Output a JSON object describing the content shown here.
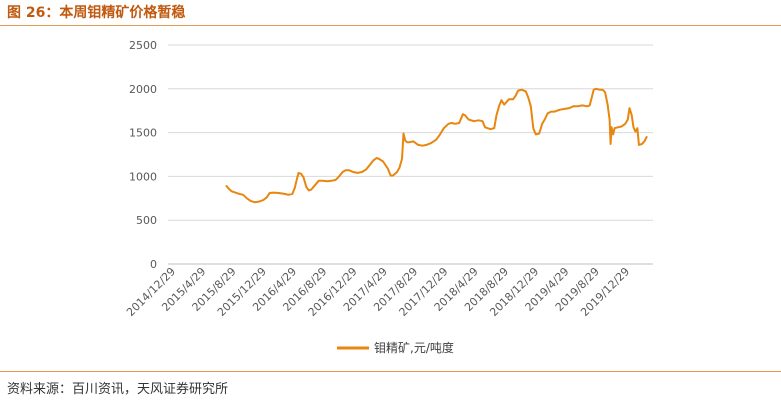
{
  "figure_title": "图 26：本周钼精矿价格暂稳",
  "source": "资料来源：百川资讯，天风证券研究所",
  "colors": {
    "series": "#e8860f",
    "accent": "#c05a10",
    "rule": "#e39a52",
    "grid": "#d9d9d9"
  },
  "chart_data": {
    "type": "line",
    "title": "",
    "xlabel": "",
    "ylabel": "",
    "ylim": [
      0,
      2500
    ],
    "yticks": [
      0,
      500,
      1000,
      1500,
      2000,
      2500
    ],
    "grid": true,
    "legend_position": "bottom",
    "xticks": [
      "2014/12/29",
      "2015/4/29",
      "2015/8/29",
      "2015/12/29",
      "2016/4/29",
      "2016/8/29",
      "2016/12/29",
      "2017/4/29",
      "2017/8/29",
      "2017/12/29",
      "2018/4/29",
      "2018/8/29",
      "2018/12/29",
      "2019/4/29",
      "2019/8/29",
      "2019/12/29"
    ],
    "series": [
      {
        "name": "钼精矿,元/吨度",
        "points": [
          [
            "2015-07-20",
            890
          ],
          [
            "2015-08-01",
            850
          ],
          [
            "2015-08-10",
            830
          ],
          [
            "2015-08-25",
            815
          ],
          [
            "2015-09-10",
            800
          ],
          [
            "2015-09-25",
            790
          ],
          [
            "2015-10-10",
            750
          ],
          [
            "2015-10-25",
            720
          ],
          [
            "2015-11-10",
            705
          ],
          [
            "2015-11-25",
            710
          ],
          [
            "2015-12-15",
            730
          ],
          [
            "2015-12-29",
            760
          ],
          [
            "2016-01-10",
            810
          ],
          [
            "2016-01-25",
            815
          ],
          [
            "2016-02-15",
            810
          ],
          [
            "2016-03-10",
            800
          ],
          [
            "2016-03-25",
            790
          ],
          [
            "2016-04-10",
            800
          ],
          [
            "2016-04-20",
            870
          ],
          [
            "2016-04-29",
            980
          ],
          [
            "2016-05-05",
            1040
          ],
          [
            "2016-05-15",
            1030
          ],
          [
            "2016-05-25",
            990
          ],
          [
            "2016-06-05",
            880
          ],
          [
            "2016-06-15",
            840
          ],
          [
            "2016-06-25",
            850
          ],
          [
            "2016-07-10",
            900
          ],
          [
            "2016-07-25",
            950
          ],
          [
            "2016-08-10",
            950
          ],
          [
            "2016-08-29",
            945
          ],
          [
            "2016-09-15",
            950
          ],
          [
            "2016-10-01",
            960
          ],
          [
            "2016-10-15",
            1000
          ],
          [
            "2016-10-29",
            1050
          ],
          [
            "2016-11-10",
            1070
          ],
          [
            "2016-11-25",
            1070
          ],
          [
            "2016-12-10",
            1050
          ],
          [
            "2016-12-29",
            1040
          ],
          [
            "2017-01-15",
            1050
          ],
          [
            "2017-02-01",
            1080
          ],
          [
            "2017-02-15",
            1130
          ],
          [
            "2017-03-01",
            1180
          ],
          [
            "2017-03-15",
            1210
          ],
          [
            "2017-03-25",
            1200
          ],
          [
            "2017-04-10",
            1170
          ],
          [
            "2017-04-29",
            1090
          ],
          [
            "2017-05-10",
            1010
          ],
          [
            "2017-05-20",
            1010
          ],
          [
            "2017-06-05",
            1050
          ],
          [
            "2017-06-15",
            1100
          ],
          [
            "2017-06-25",
            1200
          ],
          [
            "2017-07-01",
            1490
          ],
          [
            "2017-07-08",
            1410
          ],
          [
            "2017-07-15",
            1390
          ],
          [
            "2017-07-25",
            1390
          ],
          [
            "2017-08-10",
            1400
          ],
          [
            "2017-08-29",
            1360
          ],
          [
            "2017-09-15",
            1350
          ],
          [
            "2017-10-01",
            1360
          ],
          [
            "2017-10-20",
            1380
          ],
          [
            "2017-11-10",
            1420
          ],
          [
            "2017-11-25",
            1480
          ],
          [
            "2017-12-10",
            1550
          ],
          [
            "2017-12-29",
            1600
          ],
          [
            "2018-01-10",
            1610
          ],
          [
            "2018-01-25",
            1600
          ],
          [
            "2018-02-10",
            1610
          ],
          [
            "2018-02-25",
            1710
          ],
          [
            "2018-03-05",
            1700
          ],
          [
            "2018-03-20",
            1650
          ],
          [
            "2018-04-10",
            1630
          ],
          [
            "2018-04-29",
            1640
          ],
          [
            "2018-05-15",
            1630
          ],
          [
            "2018-05-25",
            1560
          ],
          [
            "2018-06-15",
            1540
          ],
          [
            "2018-07-01",
            1550
          ],
          [
            "2018-07-10",
            1700
          ],
          [
            "2018-07-20",
            1800
          ],
          [
            "2018-07-30",
            1870
          ],
          [
            "2018-08-10",
            1820
          ],
          [
            "2018-08-29",
            1880
          ],
          [
            "2018-09-15",
            1880
          ],
          [
            "2018-09-25",
            1920
          ],
          [
            "2018-10-05",
            1980
          ],
          [
            "2018-10-20",
            1990
          ],
          [
            "2018-11-05",
            1970
          ],
          [
            "2018-11-15",
            1900
          ],
          [
            "2018-11-25",
            1800
          ],
          [
            "2018-12-05",
            1550
          ],
          [
            "2018-12-15",
            1480
          ],
          [
            "2018-12-29",
            1490
          ],
          [
            "2019-01-10",
            1600
          ],
          [
            "2019-01-20",
            1650
          ],
          [
            "2019-02-01",
            1720
          ],
          [
            "2019-02-15",
            1740
          ],
          [
            "2019-03-01",
            1740
          ],
          [
            "2019-03-20",
            1760
          ],
          [
            "2019-04-10",
            1770
          ],
          [
            "2019-04-29",
            1780
          ],
          [
            "2019-05-15",
            1800
          ],
          [
            "2019-06-01",
            1800
          ],
          [
            "2019-06-20",
            1810
          ],
          [
            "2019-07-10",
            1800
          ],
          [
            "2019-07-20",
            1810
          ],
          [
            "2019-07-28",
            1900
          ],
          [
            "2019-08-05",
            1990
          ],
          [
            "2019-08-15",
            2000
          ],
          [
            "2019-08-29",
            1990
          ],
          [
            "2019-09-10",
            1990
          ],
          [
            "2019-09-20",
            1960
          ],
          [
            "2019-09-30",
            1820
          ],
          [
            "2019-10-08",
            1650
          ],
          [
            "2019-10-12",
            1370
          ],
          [
            "2019-10-16",
            1560
          ],
          [
            "2019-10-22",
            1480
          ],
          [
            "2019-10-28",
            1550
          ],
          [
            "2019-11-10",
            1560
          ],
          [
            "2019-11-25",
            1570
          ],
          [
            "2019-12-10",
            1600
          ],
          [
            "2019-12-20",
            1650
          ],
          [
            "2019-12-27",
            1780
          ],
          [
            "2020-01-05",
            1700
          ],
          [
            "2020-01-12",
            1560
          ],
          [
            "2020-01-20",
            1510
          ],
          [
            "2020-01-28",
            1550
          ],
          [
            "2020-02-03",
            1360
          ],
          [
            "2020-02-15",
            1370
          ],
          [
            "2020-02-25",
            1400
          ],
          [
            "2020-03-05",
            1450
          ]
        ]
      }
    ]
  }
}
